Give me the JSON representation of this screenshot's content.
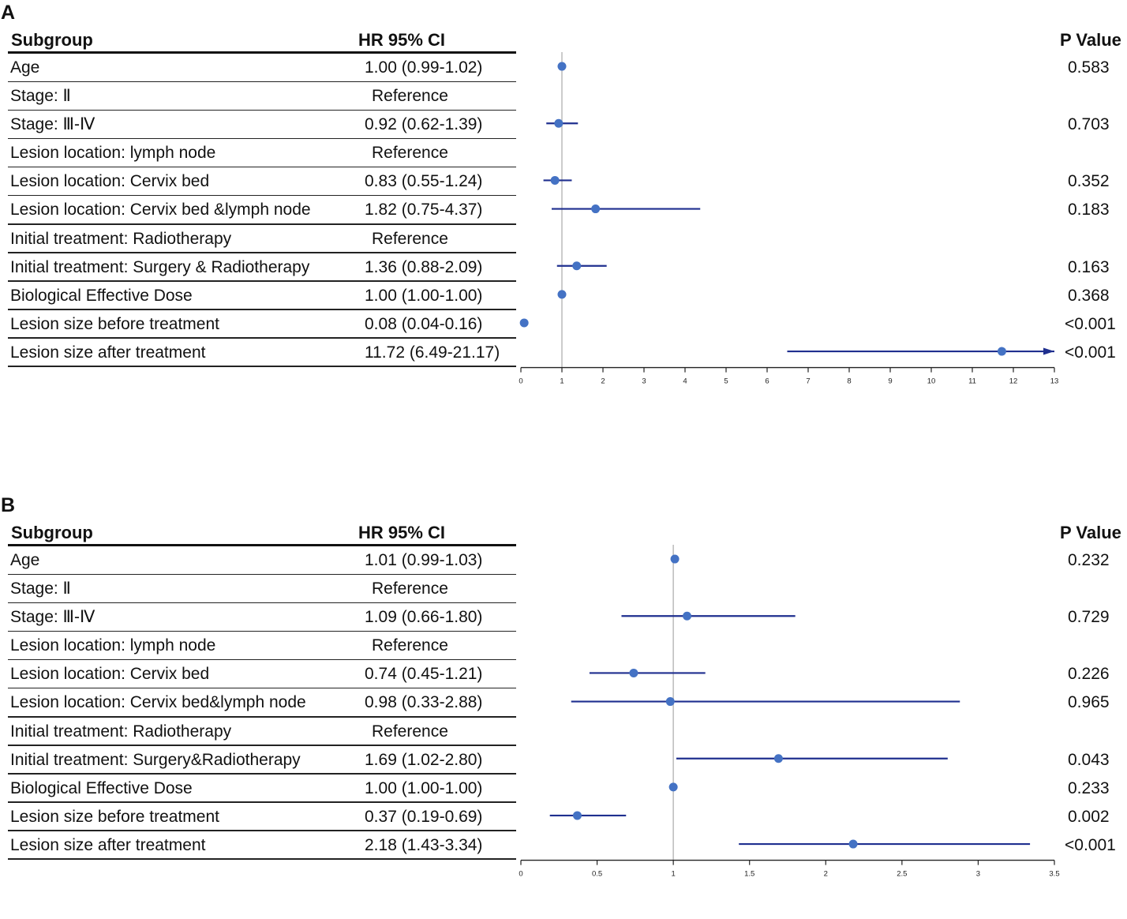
{
  "chart_data": [
    {
      "type": "forest",
      "panel_label": "A",
      "headers": {
        "subgroup": "Subgroup",
        "hr": "HR 95% CI",
        "p": "P Value"
      },
      "xlim": [
        0,
        13
      ],
      "xticks": [
        "0",
        "1",
        "2",
        "3",
        "4",
        "5",
        "6",
        "7",
        "8",
        "9",
        "10",
        "11",
        "12",
        "13"
      ],
      "reference_line": 1,
      "rows": [
        {
          "label": "Age",
          "hr_text": "1.00 (0.99-1.02)",
          "p": "0.583",
          "hr": 1.0,
          "lo": 0.99,
          "hi": 1.02,
          "reference": false
        },
        {
          "label": "Stage: Ⅱ",
          "hr_text": "Reference",
          "p": "",
          "reference": true
        },
        {
          "label": "Stage: Ⅲ-Ⅳ",
          "hr_text": "0.92 (0.62-1.39)",
          "p": "0.703",
          "hr": 0.92,
          "lo": 0.62,
          "hi": 1.39,
          "reference": false
        },
        {
          "label": "Lesion location: lymph node",
          "hr_text": "Reference",
          "p": "",
          "reference": true
        },
        {
          "label": "Lesion location: Cervix bed",
          "hr_text": "0.83 (0.55-1.24)",
          "p": "0.352",
          "hr": 0.83,
          "lo": 0.55,
          "hi": 1.24,
          "reference": false
        },
        {
          "label": "Lesion location: Cervix bed &lymph node",
          "hr_text": "1.82 (0.75-4.37)",
          "p": "0.183",
          "hr": 1.82,
          "lo": 0.75,
          "hi": 4.37,
          "reference": false
        },
        {
          "label": "Initial treatment: Radiotherapy",
          "hr_text": "Reference",
          "p": "",
          "reference": true
        },
        {
          "label": "Initial treatment: Surgery & Radiotherapy",
          "hr_text": "1.36 (0.88-2.09)",
          "p": "0.163",
          "hr": 1.36,
          "lo": 0.88,
          "hi": 2.09,
          "reference": false
        },
        {
          "label": "Biological Effective Dose",
          "hr_text": "1.00 (1.00-1.00)",
          "p": "0.368",
          "hr": 1.0,
          "lo": 1.0,
          "hi": 1.0,
          "reference": false
        },
        {
          "label": "Lesion size before treatment",
          "hr_text": "0.08 (0.04-0.16)",
          "p": "<0.001",
          "hr": 0.08,
          "lo": 0.04,
          "hi": 0.16,
          "reference": false
        },
        {
          "label": "Lesion size after treatment",
          "hr_text": "11.72 (6.49-21.17)",
          "p": "<0.001",
          "hr": 11.72,
          "lo": 6.49,
          "hi": 21.17,
          "reference": false
        }
      ]
    },
    {
      "type": "forest",
      "panel_label": "B",
      "headers": {
        "subgroup": "Subgroup",
        "hr": "HR 95% CI",
        "p": "P Value"
      },
      "xlim": [
        0,
        3.5
      ],
      "xticks": [
        "0",
        "0.5",
        "1",
        "1.5",
        "2",
        "2.5",
        "3",
        "3.5"
      ],
      "reference_line": 1,
      "rows": [
        {
          "label": "Age",
          "hr_text": "1.01 (0.99-1.03)",
          "p": "0.232",
          "hr": 1.01,
          "lo": 0.99,
          "hi": 1.03,
          "reference": false
        },
        {
          "label": "Stage: Ⅱ",
          "hr_text": "Reference",
          "p": "",
          "reference": true
        },
        {
          "label": "Stage: Ⅲ-Ⅳ",
          "hr_text": "1.09 (0.66-1.80)",
          "p": "0.729",
          "hr": 1.09,
          "lo": 0.66,
          "hi": 1.8,
          "reference": false
        },
        {
          "label": "Lesion location: lymph node",
          "hr_text": "Reference",
          "p": "",
          "reference": true
        },
        {
          "label": "Lesion location: Cervix bed",
          "hr_text": "0.74 (0.45-1.21)",
          "p": "0.226",
          "hr": 0.74,
          "lo": 0.45,
          "hi": 1.21,
          "reference": false
        },
        {
          "label": "Lesion location: Cervix bed&lymph node",
          "hr_text": "0.98 (0.33-2.88)",
          "p": "0.965",
          "hr": 0.98,
          "lo": 0.33,
          "hi": 2.88,
          "reference": false
        },
        {
          "label": "Initial treatment: Radiotherapy",
          "hr_text": "Reference",
          "p": "",
          "reference": true
        },
        {
          "label": "Initial treatment: Surgery&Radiotherapy",
          "hr_text": "1.69 (1.02-2.80)",
          "p": "0.043",
          "hr": 1.69,
          "lo": 1.02,
          "hi": 2.8,
          "reference": false
        },
        {
          "label": "Biological Effective Dose",
          "hr_text": "1.00 (1.00-1.00)",
          "p": "0.233",
          "hr": 1.0,
          "lo": 1.0,
          "hi": 1.0,
          "reference": false
        },
        {
          "label": "Lesion size before treatment",
          "hr_text": "0.37 (0.19-0.69)",
          "p": "0.002",
          "hr": 0.37,
          "lo": 0.19,
          "hi": 0.69,
          "reference": false
        },
        {
          "label": "Lesion size after treatment",
          "hr_text": "2.18 (1.43-3.34)",
          "p": "<0.001",
          "hr": 2.18,
          "lo": 1.43,
          "hi": 3.34,
          "reference": false
        }
      ]
    }
  ],
  "colors": {
    "point": "#4472C4",
    "ci_line": "#1F2F8F",
    "ref_line": "#BFBFBF",
    "axis": "#222222",
    "text": "#111111"
  }
}
